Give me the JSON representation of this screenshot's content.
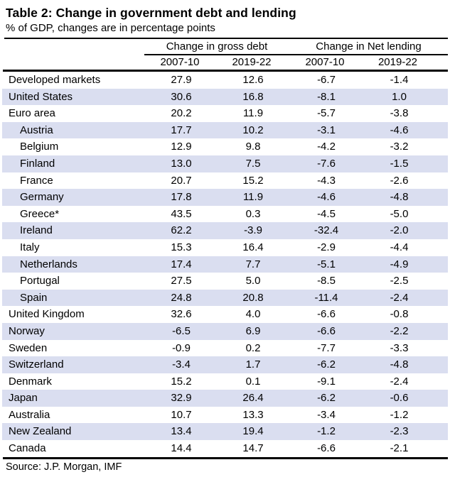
{
  "title": "Table 2: Change in government debt and lending",
  "subtitle": "% of GDP, changes are in percentage points",
  "source": "Source: J.P. Morgan, IMF",
  "colors": {
    "stripe": "#dadef0",
    "text": "#000000",
    "rule": "#000000",
    "background": "#ffffff"
  },
  "chart_data": {
    "type": "table",
    "title": "Table 2: Change in government debt and lending",
    "subtitle": "% of GDP, changes are in percentage points",
    "column_groups": [
      "Change in gross debt",
      "Change in Net lending"
    ],
    "columns": [
      "2007-10",
      "2019-22",
      "2007-10",
      "2019-22"
    ],
    "layout": {
      "striped_rows": "alternating, second row shaded",
      "numeric_alignment": "center",
      "grid": "horizontal rules only"
    },
    "rows": [
      {
        "name": "Developed markets",
        "indent": false,
        "values": [
          "27.9",
          "12.6",
          "-6.7",
          "-1.4"
        ]
      },
      {
        "name": "United States",
        "indent": false,
        "values": [
          "30.6",
          "16.8",
          "-8.1",
          "1.0"
        ]
      },
      {
        "name": "Euro area",
        "indent": false,
        "values": [
          "20.2",
          "11.9",
          "-5.7",
          "-3.8"
        ]
      },
      {
        "name": "Austria",
        "indent": true,
        "values": [
          "17.7",
          "10.2",
          "-3.1",
          "-4.6"
        ]
      },
      {
        "name": "Belgium",
        "indent": true,
        "values": [
          "12.9",
          "9.8",
          "-4.2",
          "-3.2"
        ]
      },
      {
        "name": "Finland",
        "indent": true,
        "values": [
          "13.0",
          "7.5",
          "-7.6",
          "-1.5"
        ]
      },
      {
        "name": "France",
        "indent": true,
        "values": [
          "20.7",
          "15.2",
          "-4.3",
          "-2.6"
        ]
      },
      {
        "name": "Germany",
        "indent": true,
        "values": [
          "17.8",
          "11.9",
          "-4.6",
          "-4.8"
        ]
      },
      {
        "name": "Greece*",
        "indent": true,
        "values": [
          "43.5",
          "0.3",
          "-4.5",
          "-5.0"
        ]
      },
      {
        "name": "Ireland",
        "indent": true,
        "values": [
          "62.2",
          "-3.9",
          "-32.4",
          "-2.0"
        ]
      },
      {
        "name": "Italy",
        "indent": true,
        "values": [
          "15.3",
          "16.4",
          "-2.9",
          "-4.4"
        ]
      },
      {
        "name": "Netherlands",
        "indent": true,
        "values": [
          "17.4",
          "7.7",
          "-5.1",
          "-4.9"
        ]
      },
      {
        "name": "Portugal",
        "indent": true,
        "values": [
          "27.5",
          "5.0",
          "-8.5",
          "-2.5"
        ]
      },
      {
        "name": "Spain",
        "indent": true,
        "values": [
          "24.8",
          "20.8",
          "-11.4",
          "-2.4"
        ]
      },
      {
        "name": "United Kingdom",
        "indent": false,
        "values": [
          "32.6",
          "4.0",
          "-6.6",
          "-0.8"
        ]
      },
      {
        "name": "Norway",
        "indent": false,
        "values": [
          "-6.5",
          "6.9",
          "-6.6",
          "-2.2"
        ]
      },
      {
        "name": "Sweden",
        "indent": false,
        "values": [
          "-0.9",
          "0.2",
          "-7.7",
          "-3.3"
        ]
      },
      {
        "name": "Switzerland",
        "indent": false,
        "values": [
          "-3.4",
          "1.7",
          "-6.2",
          "-4.8"
        ]
      },
      {
        "name": "Denmark",
        "indent": false,
        "values": [
          "15.2",
          "0.1",
          "-9.1",
          "-2.4"
        ]
      },
      {
        "name": "Japan",
        "indent": false,
        "values": [
          "32.9",
          "26.4",
          "-6.2",
          "-0.6"
        ]
      },
      {
        "name": "Australia",
        "indent": false,
        "values": [
          "10.7",
          "13.3",
          "-3.4",
          "-1.2"
        ]
      },
      {
        "name": "New Zealand",
        "indent": false,
        "values": [
          "13.4",
          "19.4",
          "-1.2",
          "-2.3"
        ]
      },
      {
        "name": "Canada",
        "indent": false,
        "values": [
          "14.4",
          "14.7",
          "-6.6",
          "-2.1"
        ]
      }
    ]
  }
}
